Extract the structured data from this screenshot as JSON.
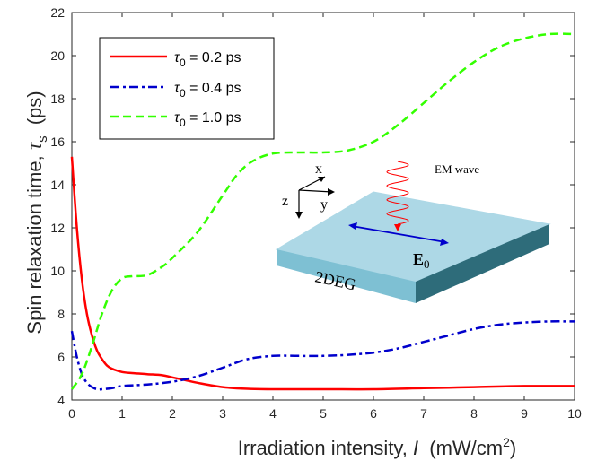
{
  "chart_data": {
    "type": "line",
    "xlabel": "Irradiation intensity,",
    "xlabel_var": "I",
    "xlabel_unit": "(mW/cm",
    "xlabel_sup": "2",
    "xlabel_close": ")",
    "ylabel": "Spin relaxation time,",
    "ylabel_var": "τ",
    "ylabel_sub": "s",
    "ylabel_unit": "(ps)",
    "xlim": [
      0,
      10
    ],
    "ylim": [
      4,
      22
    ],
    "xticks": [
      "0",
      "1",
      "2",
      "3",
      "4",
      "5",
      "6",
      "7",
      "8",
      "9",
      "10"
    ],
    "yticks": [
      "4",
      "6",
      "8",
      "10",
      "12",
      "14",
      "16",
      "18",
      "20",
      "22"
    ],
    "grid": false,
    "legend_position": "top-left",
    "series": [
      {
        "legend_prefix": "τ",
        "legend_sub": "0",
        "legend_rest": " = 0.2 ps",
        "color": "#ff0000",
        "dash": "solid",
        "x": [
          0,
          0.1,
          0.2,
          0.3,
          0.4,
          0.5,
          0.6,
          0.7,
          0.8,
          1.0,
          1.2,
          1.5,
          1.8,
          2.0,
          2.2,
          2.5,
          3.0,
          3.5,
          4.0,
          5.0,
          6.0,
          7.0,
          8.0,
          9.0,
          10.0
        ],
        "y": [
          15.3,
          12.0,
          9.6,
          8.0,
          7.0,
          6.3,
          5.9,
          5.6,
          5.45,
          5.3,
          5.25,
          5.2,
          5.15,
          5.05,
          4.95,
          4.8,
          4.6,
          4.52,
          4.5,
          4.5,
          4.5,
          4.55,
          4.6,
          4.65,
          4.65
        ]
      },
      {
        "legend_prefix": "τ",
        "legend_sub": "0",
        "legend_rest": " = 0.4 ps",
        "color": "#0000cc",
        "dash": "dashdot",
        "x": [
          0,
          0.1,
          0.2,
          0.3,
          0.4,
          0.5,
          0.6,
          0.8,
          1.0,
          1.5,
          2.0,
          2.5,
          3.0,
          3.5,
          4.0,
          4.5,
          5.0,
          5.5,
          6.0,
          6.5,
          7.0,
          7.5,
          8.0,
          8.5,
          9.0,
          9.5,
          10.0
        ],
        "y": [
          7.2,
          6.0,
          5.2,
          4.8,
          4.6,
          4.5,
          4.5,
          4.55,
          4.65,
          4.72,
          4.85,
          5.1,
          5.5,
          5.9,
          6.05,
          6.05,
          6.05,
          6.1,
          6.2,
          6.4,
          6.7,
          7.0,
          7.3,
          7.5,
          7.6,
          7.65,
          7.65
        ]
      },
      {
        "legend_prefix": "τ",
        "legend_sub": "0",
        "legend_rest": " = 1.0 ps",
        "color": "#33ff00",
        "dash": "dashed",
        "x": [
          0,
          0.2,
          0.4,
          0.6,
          0.8,
          1.0,
          1.2,
          1.5,
          1.8,
          2.0,
          2.5,
          3.0,
          3.3,
          3.6,
          4.0,
          4.5,
          5.0,
          5.5,
          6.0,
          6.5,
          7.0,
          7.5,
          8.0,
          8.5,
          9.0,
          9.5,
          10.0
        ],
        "y": [
          4.5,
          5.2,
          6.5,
          8.0,
          9.1,
          9.65,
          9.75,
          9.8,
          10.2,
          10.6,
          11.8,
          13.5,
          14.5,
          15.1,
          15.45,
          15.5,
          15.5,
          15.6,
          16.0,
          16.8,
          17.8,
          18.8,
          19.7,
          20.4,
          20.8,
          21.0,
          21.0
        ]
      }
    ]
  },
  "inset": {
    "axis_x": "x",
    "axis_y": "y",
    "axis_z": "z",
    "wave_label": "EM wave",
    "field_label": "E",
    "field_sub": "0",
    "slab_label": "2DEG",
    "slab_top_color": "#add8e6",
    "slab_side_color": "#7ec0d3",
    "slab_edge_color": "#2e6c7a"
  }
}
